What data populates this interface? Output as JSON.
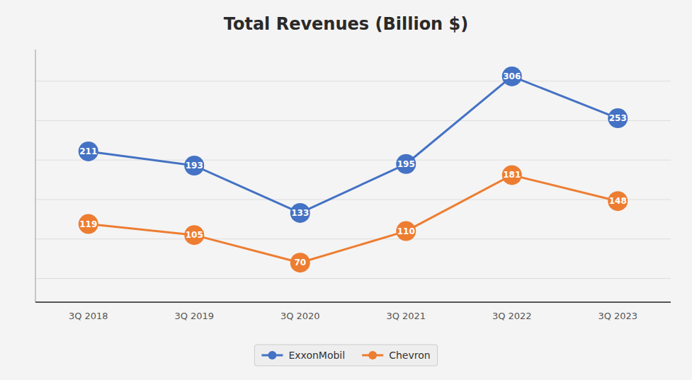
{
  "chart_data": {
    "type": "line",
    "title": "Total Revenues (Billion $)",
    "categories": [
      "3Q 2018",
      "3Q 2019",
      "3Q 2020",
      "3Q 2021",
      "3Q 2022",
      "3Q 2023"
    ],
    "series": [
      {
        "name": "ExxonMobil",
        "color": "#4472C4",
        "values": [
          211,
          193,
          133,
          195,
          306,
          253
        ]
      },
      {
        "name": "Chevron",
        "color": "#ED7D31",
        "values": [
          119,
          105,
          70,
          110,
          181,
          148
        ]
      }
    ],
    "ylim": [
      20,
      340
    ],
    "yticks": [
      50,
      100,
      150,
      200,
      250,
      300
    ],
    "grid": true,
    "data_labels": true,
    "tick_labels": "x",
    "legend": "bottom",
    "marker": "circle"
  }
}
